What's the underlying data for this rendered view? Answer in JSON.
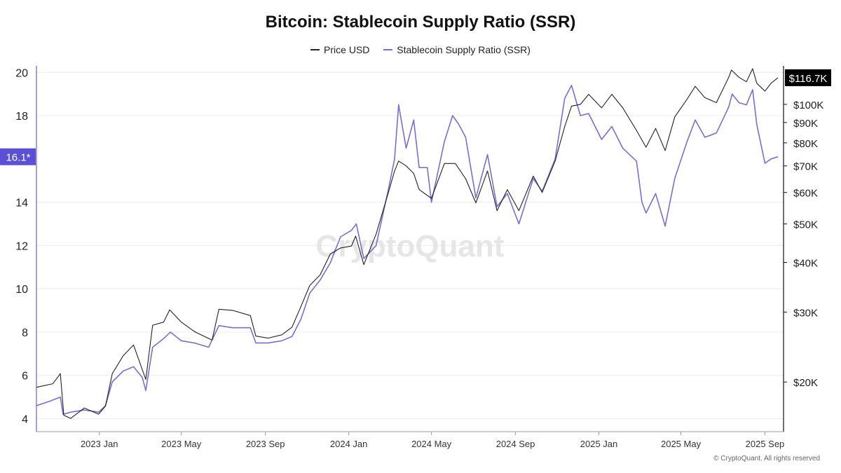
{
  "title": "Bitcoin: Stablecoin Supply Ratio (SSR)",
  "legend": [
    {
      "label": "Price USD",
      "color": "#222222"
    },
    {
      "label": "Stablecoin Supply Ratio (SSR)",
      "color": "#7b6cd9"
    }
  ],
  "watermark": "CryptoQuant",
  "footer": "© CryptoQuant. All rights reserved",
  "colors": {
    "ssr": "#7b6cd9",
    "price": "#222222",
    "ssr_badge": "#5b4fd6",
    "price_badge": "#000000",
    "grid": "#ececec"
  },
  "chart_data": {
    "type": "line",
    "x_ticks": [
      "2023 Jan",
      "2023 May",
      "2023 Sep",
      "2024 Jan",
      "2024 May",
      "2024 Sep",
      "2025 Jan",
      "2025 May",
      "2025 Sep"
    ],
    "x_range": [
      "2022-10-01",
      "2025-09-20"
    ],
    "y_left": {
      "ticks": [
        4,
        6,
        8,
        10,
        12,
        14,
        18,
        20
      ],
      "range": [
        3.4,
        20.3
      ]
    },
    "y_right": {
      "scale": "log",
      "ticks": [
        20000,
        30000,
        40000,
        50000,
        60000,
        70000,
        80000,
        90000,
        100000
      ],
      "tick_labels": [
        "$20K",
        "$30K",
        "$40K",
        "$50K",
        "$60K",
        "$70K",
        "$80K",
        "$90K",
        "$100K"
      ],
      "range": [
        15000,
        125000
      ]
    },
    "current_values": {
      "ssr_label": "16.1*",
      "ssr": 16.1,
      "price_label": "$116.7K",
      "price": 116700
    },
    "series": [
      {
        "name": "Stablecoin Supply Ratio (SSR)",
        "axis": "left",
        "points": [
          [
            "2022-10-01",
            4.6
          ],
          [
            "2022-10-20",
            4.8
          ],
          [
            "2022-11-05",
            5.0
          ],
          [
            "2022-11-09",
            4.2
          ],
          [
            "2022-11-20",
            4.3
          ],
          [
            "2022-12-10",
            4.4
          ],
          [
            "2022-12-31",
            4.3
          ],
          [
            "2023-01-10",
            4.6
          ],
          [
            "2023-01-20",
            5.7
          ],
          [
            "2023-02-05",
            6.2
          ],
          [
            "2023-02-20",
            6.4
          ],
          [
            "2023-03-05",
            5.9
          ],
          [
            "2023-03-10",
            5.3
          ],
          [
            "2023-03-20",
            7.3
          ],
          [
            "2023-04-05",
            7.7
          ],
          [
            "2023-04-15",
            8.0
          ],
          [
            "2023-05-01",
            7.6
          ],
          [
            "2023-05-20",
            7.5
          ],
          [
            "2023-06-10",
            7.3
          ],
          [
            "2023-06-25",
            8.3
          ],
          [
            "2023-07-15",
            8.2
          ],
          [
            "2023-08-10",
            8.2
          ],
          [
            "2023-08-18",
            7.5
          ],
          [
            "2023-09-05",
            7.5
          ],
          [
            "2023-09-25",
            7.6
          ],
          [
            "2023-10-10",
            7.8
          ],
          [
            "2023-10-23",
            8.6
          ],
          [
            "2023-11-05",
            9.8
          ],
          [
            "2023-11-20",
            10.4
          ],
          [
            "2023-12-05",
            11.2
          ],
          [
            "2023-12-20",
            12.4
          ],
          [
            "2024-01-05",
            12.7
          ],
          [
            "2024-01-12",
            13.0
          ],
          [
            "2024-01-23",
            11.4
          ],
          [
            "2024-02-10",
            12.0
          ],
          [
            "2024-02-28",
            14.6
          ],
          [
            "2024-03-08",
            16.0
          ],
          [
            "2024-03-14",
            18.5
          ],
          [
            "2024-03-25",
            16.5
          ],
          [
            "2024-04-05",
            17.8
          ],
          [
            "2024-04-13",
            15.6
          ],
          [
            "2024-04-25",
            15.6
          ],
          [
            "2024-05-01",
            14.0
          ],
          [
            "2024-05-20",
            16.8
          ],
          [
            "2024-06-01",
            18.0
          ],
          [
            "2024-06-10",
            17.6
          ],
          [
            "2024-06-20",
            17.0
          ],
          [
            "2024-07-05",
            14.2
          ],
          [
            "2024-07-22",
            16.2
          ],
          [
            "2024-08-05",
            13.8
          ],
          [
            "2024-08-20",
            14.4
          ],
          [
            "2024-09-06",
            13.0
          ],
          [
            "2024-09-27",
            15.1
          ],
          [
            "2024-10-10",
            14.5
          ],
          [
            "2024-10-29",
            16.0
          ],
          [
            "2024-11-12",
            18.8
          ],
          [
            "2024-11-22",
            19.4
          ],
          [
            "2024-12-05",
            18.0
          ],
          [
            "2024-12-17",
            18.1
          ],
          [
            "2025-01-05",
            16.9
          ],
          [
            "2025-01-20",
            17.5
          ],
          [
            "2025-02-05",
            16.5
          ],
          [
            "2025-02-25",
            15.9
          ],
          [
            "2025-03-05",
            14.0
          ],
          [
            "2025-03-11",
            13.5
          ],
          [
            "2025-03-25",
            14.4
          ],
          [
            "2025-04-08",
            12.9
          ],
          [
            "2025-04-22",
            15.1
          ],
          [
            "2025-05-10",
            16.8
          ],
          [
            "2025-05-22",
            17.8
          ],
          [
            "2025-06-05",
            17.0
          ],
          [
            "2025-06-22",
            17.2
          ],
          [
            "2025-07-10",
            18.4
          ],
          [
            "2025-07-15",
            19.0
          ],
          [
            "2025-07-25",
            18.6
          ],
          [
            "2025-08-05",
            18.5
          ],
          [
            "2025-08-14",
            19.2
          ],
          [
            "2025-08-20",
            17.6
          ],
          [
            "2025-09-01",
            15.8
          ],
          [
            "2025-09-10",
            16.0
          ],
          [
            "2025-09-20",
            16.1
          ]
        ]
      },
      {
        "name": "Price USD",
        "axis": "right",
        "points": [
          [
            "2022-10-01",
            19400
          ],
          [
            "2022-10-25",
            19800
          ],
          [
            "2022-11-05",
            21000
          ],
          [
            "2022-11-10",
            16500
          ],
          [
            "2022-11-20",
            16200
          ],
          [
            "2022-12-10",
            17200
          ],
          [
            "2022-12-31",
            16600
          ],
          [
            "2023-01-10",
            17400
          ],
          [
            "2023-01-20",
            21000
          ],
          [
            "2023-02-05",
            23300
          ],
          [
            "2023-02-20",
            24800
          ],
          [
            "2023-03-10",
            20300
          ],
          [
            "2023-03-20",
            27800
          ],
          [
            "2023-04-05",
            28300
          ],
          [
            "2023-04-14",
            30400
          ],
          [
            "2023-05-01",
            28300
          ],
          [
            "2023-05-20",
            26800
          ],
          [
            "2023-06-15",
            25500
          ],
          [
            "2023-06-25",
            30500
          ],
          [
            "2023-07-15",
            30300
          ],
          [
            "2023-08-10",
            29400
          ],
          [
            "2023-08-18",
            26100
          ],
          [
            "2023-09-05",
            25800
          ],
          [
            "2023-09-25",
            26300
          ],
          [
            "2023-10-10",
            27500
          ],
          [
            "2023-10-23",
            31000
          ],
          [
            "2023-11-05",
            35000
          ],
          [
            "2023-11-20",
            37200
          ],
          [
            "2023-12-05",
            42000
          ],
          [
            "2023-12-20",
            43500
          ],
          [
            "2024-01-05",
            44000
          ],
          [
            "2024-01-11",
            46600
          ],
          [
            "2024-01-23",
            39500
          ],
          [
            "2024-02-10",
            47100
          ],
          [
            "2024-02-28",
            60000
          ],
          [
            "2024-03-08",
            68000
          ],
          [
            "2024-03-14",
            72000
          ],
          [
            "2024-03-25",
            70000
          ],
          [
            "2024-04-05",
            67000
          ],
          [
            "2024-04-13",
            61000
          ],
          [
            "2024-05-01",
            58000
          ],
          [
            "2024-05-20",
            71000
          ],
          [
            "2024-06-05",
            71000
          ],
          [
            "2024-06-20",
            65000
          ],
          [
            "2024-07-05",
            56500
          ],
          [
            "2024-07-22",
            68000
          ],
          [
            "2024-08-05",
            54000
          ],
          [
            "2024-08-20",
            61000
          ],
          [
            "2024-09-06",
            54000
          ],
          [
            "2024-09-27",
            66000
          ],
          [
            "2024-10-10",
            60000
          ],
          [
            "2024-10-29",
            72000
          ],
          [
            "2024-11-12",
            88000
          ],
          [
            "2024-11-22",
            99000
          ],
          [
            "2024-12-05",
            100000
          ],
          [
            "2024-12-17",
            106000
          ],
          [
            "2025-01-05",
            98000
          ],
          [
            "2025-01-20",
            106000
          ],
          [
            "2025-02-05",
            98000
          ],
          [
            "2025-02-25",
            86000
          ],
          [
            "2025-03-11",
            78000
          ],
          [
            "2025-03-25",
            87000
          ],
          [
            "2025-04-08",
            76500
          ],
          [
            "2025-04-22",
            93000
          ],
          [
            "2025-05-10",
            103000
          ],
          [
            "2025-05-22",
            111000
          ],
          [
            "2025-06-05",
            104000
          ],
          [
            "2025-06-22",
            101000
          ],
          [
            "2025-07-10",
            117000
          ],
          [
            "2025-07-14",
            122000
          ],
          [
            "2025-07-25",
            117000
          ],
          [
            "2025-08-05",
            114000
          ],
          [
            "2025-08-14",
            123000
          ],
          [
            "2025-08-20",
            113000
          ],
          [
            "2025-09-01",
            108000
          ],
          [
            "2025-09-10",
            113000
          ],
          [
            "2025-09-20",
            116700
          ]
        ]
      }
    ]
  }
}
